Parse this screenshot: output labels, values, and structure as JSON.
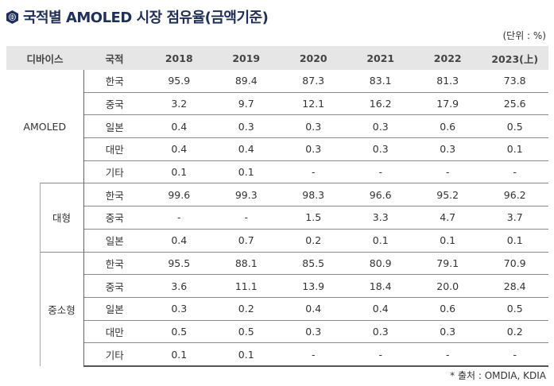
{
  "title": "국적별 AMOLED 시장 점유율(금액기준)",
  "unit": "(단위 : %)",
  "source": "* 출처 : OMDIA, KDIA",
  "headers": {
    "device": "디바이스",
    "country": "국적",
    "years": [
      "2018",
      "2019",
      "2020",
      "2021",
      "2022",
      "2023(上)"
    ]
  },
  "groups": [
    {
      "device": "AMOLED",
      "rows": [
        {
          "country": "한국",
          "values": [
            "95.9",
            "89.4",
            "87.3",
            "83.1",
            "81.3",
            "73.8"
          ]
        },
        {
          "country": "중국",
          "values": [
            "3.2",
            "9.7",
            "12.1",
            "16.2",
            "17.9",
            "25.6"
          ]
        },
        {
          "country": "일본",
          "values": [
            "0.4",
            "0.3",
            "0.3",
            "0.3",
            "0.6",
            "0.5"
          ]
        },
        {
          "country": "대만",
          "values": [
            "0.4",
            "0.4",
            "0.3",
            "0.3",
            "0.3",
            "0.1"
          ]
        },
        {
          "country": "기타",
          "values": [
            "0.1",
            "0.1",
            "-",
            "-",
            "-",
            "-"
          ]
        }
      ]
    },
    {
      "device": "대형",
      "rows": [
        {
          "country": "한국",
          "values": [
            "99.6",
            "99.3",
            "98.3",
            "96.6",
            "95.2",
            "96.2"
          ]
        },
        {
          "country": "중국",
          "values": [
            "-",
            "-",
            "1.5",
            "3.3",
            "4.7",
            "3.7"
          ]
        },
        {
          "country": "일본",
          "values": [
            "0.4",
            "0.7",
            "0.2",
            "0.1",
            "0.1",
            "0.1"
          ]
        }
      ]
    },
    {
      "device": "중소형",
      "rows": [
        {
          "country": "한국",
          "values": [
            "95.5",
            "88.1",
            "85.5",
            "80.9",
            "79.1",
            "70.9"
          ]
        },
        {
          "country": "중국",
          "values": [
            "3.6",
            "11.1",
            "13.9",
            "18.4",
            "20.0",
            "28.4"
          ]
        },
        {
          "country": "일본",
          "values": [
            "0.3",
            "0.2",
            "0.4",
            "0.4",
            "0.6",
            "0.5"
          ]
        },
        {
          "country": "대만",
          "values": [
            "0.5",
            "0.5",
            "0.3",
            "0.3",
            "0.3",
            "0.2"
          ]
        },
        {
          "country": "기타",
          "values": [
            "0.1",
            "0.1",
            "-",
            "-",
            "-",
            "-"
          ]
        }
      ]
    }
  ]
}
